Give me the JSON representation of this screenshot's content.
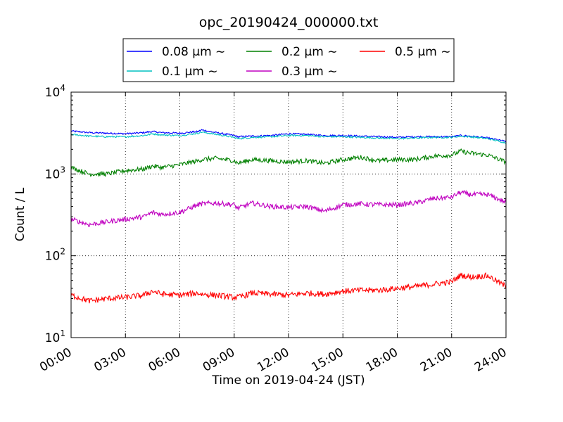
{
  "chart_data": {
    "type": "line",
    "title": "opc_20190424_000000.txt",
    "xlabel": "Time on 2019-04-24 (JST)",
    "ylabel": "Count / L",
    "yscale": "log",
    "ylim": [
      10,
      10000
    ],
    "xlim": [
      "00:00",
      "24:00"
    ],
    "x_ticks": [
      "00:00",
      "03:00",
      "06:00",
      "09:00",
      "12:00",
      "15:00",
      "18:00",
      "21:00",
      "24:00"
    ],
    "y_ticks": [
      {
        "value": 10,
        "base": "10",
        "exp": "1"
      },
      {
        "value": 100,
        "base": "10",
        "exp": "2"
      },
      {
        "value": 1000,
        "base": "10",
        "exp": "3"
      },
      {
        "value": 10000,
        "base": "10",
        "exp": "4"
      }
    ],
    "grid": true,
    "legend_position": "top-center",
    "x_hours": [
      0,
      1,
      2,
      3,
      4,
      4.5,
      5,
      6,
      7,
      7.2,
      8,
      9,
      9.2,
      10,
      11,
      12,
      13,
      14,
      15,
      16,
      17,
      18,
      19,
      20,
      21,
      21.5,
      22,
      23,
      24
    ],
    "series": [
      {
        "name": "0.08 μm ∼",
        "color": "#0000ff",
        "values": [
          3350,
          3200,
          3150,
          3100,
          3200,
          3300,
          3200,
          3150,
          3300,
          3450,
          3200,
          2950,
          2850,
          2900,
          2950,
          3100,
          3050,
          2950,
          2950,
          2900,
          2850,
          2800,
          2850,
          2850,
          2850,
          2950,
          2900,
          2750,
          2500
        ]
      },
      {
        "name": "0.1 μm ∼",
        "color": "#00c0c0",
        "values": [
          3050,
          2900,
          2850,
          2850,
          2950,
          3100,
          3000,
          2950,
          3150,
          3250,
          3050,
          2800,
          2700,
          2800,
          2850,
          2950,
          2950,
          2850,
          2850,
          2800,
          2750,
          2700,
          2750,
          2800,
          2800,
          2900,
          2850,
          2700,
          2400
        ]
      },
      {
        "name": "0.2 μm ∼",
        "color": "#008000",
        "values": [
          1200,
          1000,
          1000,
          1100,
          1150,
          1250,
          1200,
          1300,
          1450,
          1500,
          1550,
          1450,
          1350,
          1500,
          1450,
          1400,
          1450,
          1350,
          1500,
          1600,
          1450,
          1500,
          1500,
          1650,
          1700,
          1900,
          1800,
          1700,
          1400
        ]
      },
      {
        "name": "0.3 μm ∼",
        "color": "#c000c0",
        "values": [
          280,
          240,
          260,
          280,
          300,
          340,
          320,
          340,
          420,
          430,
          440,
          420,
          380,
          440,
          400,
          390,
          400,
          350,
          420,
          430,
          420,
          420,
          440,
          500,
          520,
          600,
          560,
          560,
          450
        ]
      },
      {
        "name": "0.5 μm ∼",
        "color": "#ff0000",
        "values": [
          33,
          28,
          30,
          31,
          33,
          37,
          34,
          33,
          35,
          34,
          33,
          31,
          31,
          35,
          34,
          33,
          35,
          34,
          37,
          38,
          38,
          40,
          42,
          45,
          48,
          58,
          55,
          57,
          42
        ]
      }
    ]
  }
}
